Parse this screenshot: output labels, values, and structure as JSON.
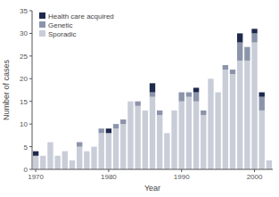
{
  "chart_data": {
    "type": "bar",
    "stacked": true,
    "x_label": "Year",
    "y_label": "Number of cases",
    "categories": [
      1970,
      null,
      null,
      null,
      null,
      null,
      null,
      null,
      null,
      null,
      1980,
      null,
      null,
      null,
      null,
      null,
      null,
      null,
      null,
      null,
      1990,
      null,
      null,
      null,
      null,
      null,
      null,
      null,
      null,
      null,
      2000,
      null,
      null
    ],
    "series": [
      {
        "name": "Sporadic",
        "color": "#c9cdd8",
        "values": [
          3,
          3,
          6,
          3,
          4,
          2,
          5,
          4,
          5,
          8,
          8,
          9,
          10,
          15,
          14,
          13,
          16,
          12,
          8,
          13,
          15,
          16,
          15,
          12,
          20,
          17,
          22,
          21,
          24,
          24,
          28,
          13,
          2
        ]
      },
      {
        "name": "Genetic",
        "color": "#8b94aa",
        "values": [
          0,
          0,
          0,
          0,
          0,
          0,
          1,
          0,
          0,
          1,
          0,
          1,
          1,
          0,
          1,
          0,
          1,
          1,
          0,
          0,
          2,
          1,
          2,
          1,
          0,
          0,
          1,
          1,
          4,
          3,
          2,
          3,
          0
        ]
      },
      {
        "name": "Health care acquired",
        "color": "#1e2a4c",
        "values": [
          1,
          0,
          0,
          0,
          0,
          0,
          0,
          0,
          0,
          0,
          1,
          0,
          0,
          0,
          0,
          0,
          2,
          0,
          0,
          0,
          0,
          0,
          1,
          0,
          0,
          0,
          0,
          0,
          2,
          0,
          1,
          1,
          0
        ]
      }
    ],
    "ylim": [
      0,
      35
    ],
    "yticks": [
      0,
      5,
      10,
      15,
      20,
      25,
      30,
      35
    ],
    "legend": "upper left"
  }
}
